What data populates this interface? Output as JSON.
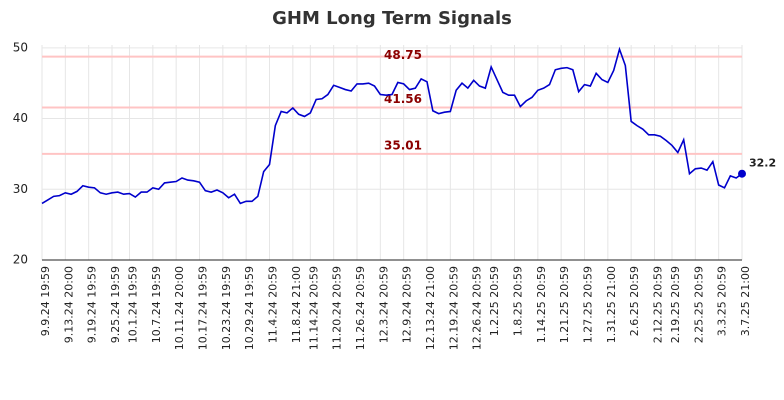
{
  "chart_data": {
    "type": "line",
    "title": "GHM Long Term Signals",
    "categories": [
      "9.9.24 19:59",
      null,
      null,
      null,
      "9.13.24 20:00",
      null,
      null,
      null,
      "9.19.24 19:59",
      null,
      null,
      null,
      "9.25.24 19:59",
      null,
      null,
      "10.1.24 19:59",
      null,
      null,
      null,
      "10.7.24 19:59",
      null,
      null,
      null,
      "10.11.24 20:00",
      null,
      null,
      null,
      "10.17.24 19:59",
      null,
      null,
      null,
      "10.23.24 19:59",
      null,
      null,
      null,
      "10.29.24 19:59",
      null,
      null,
      null,
      "11.4.24 20:59",
      null,
      null,
      null,
      "11.8.24 21:00",
      null,
      null,
      "11.14.24 20:59",
      null,
      null,
      null,
      "11.20.24 20:59",
      null,
      null,
      null,
      "11.26.24 20:59",
      null,
      null,
      null,
      "12.3.24 20:59",
      null,
      null,
      null,
      "12.9.24 20:59",
      null,
      null,
      null,
      "12.13.24 21:00",
      null,
      null,
      null,
      "12.19.24 20:59",
      null,
      null,
      null,
      "12.26.24 20:59",
      null,
      null,
      "1.2.25 20:59",
      null,
      null,
      null,
      "1.8.25 20:59",
      null,
      null,
      null,
      "1.14.25 20:59",
      null,
      null,
      null,
      "1.21.25 20:59",
      null,
      null,
      null,
      "1.27.25 20:59",
      null,
      null,
      null,
      "1.31.25 21:00",
      null,
      null,
      null,
      "2.6.25 20:59",
      null,
      null,
      null,
      "2.12.25 20:59",
      null,
      null,
      "2.19.25 20:59",
      null,
      null,
      null,
      "2.25.25 20:59",
      null,
      null,
      null,
      "3.3.25 20:59",
      null,
      null,
      null,
      "3.7.25 21:00"
    ],
    "values": [
      28.0,
      28.5,
      29.0,
      29.1,
      29.5,
      29.3,
      29.7,
      30.5,
      30.3,
      30.2,
      29.5,
      29.3,
      29.5,
      29.6,
      29.3,
      29.4,
      28.9,
      29.6,
      29.6,
      30.2,
      30.0,
      30.9,
      31.0,
      31.1,
      31.6,
      31.3,
      31.2,
      31.0,
      29.8,
      29.6,
      29.9,
      29.5,
      28.8,
      29.3,
      28.0,
      28.3,
      28.3,
      29.0,
      32.5,
      33.5,
      39.0,
      41.0,
      40.8,
      41.5,
      40.6,
      40.3,
      40.8,
      42.7,
      42.8,
      43.4,
      44.7,
      44.4,
      44.1,
      43.9,
      44.9,
      44.9,
      45.0,
      44.6,
      43.4,
      43.3,
      43.4,
      45.1,
      44.9,
      44.1,
      44.3,
      45.6,
      45.2,
      41.1,
      40.7,
      40.9,
      41.0,
      44.0,
      45.0,
      44.3,
      45.4,
      44.6,
      44.3,
      47.3,
      45.5,
      43.7,
      43.3,
      43.3,
      41.7,
      42.5,
      43.0,
      44.0,
      44.3,
      44.8,
      46.9,
      47.1,
      47.2,
      46.9,
      43.8,
      44.8,
      44.6,
      46.4,
      45.5,
      45.1,
      46.8,
      49.8,
      47.5,
      39.6,
      39.0,
      38.5,
      37.7,
      37.7,
      37.5,
      36.9,
      36.2,
      35.2,
      37.0,
      32.2,
      32.9,
      33.0,
      32.7,
      33.9,
      30.6,
      30.2,
      31.9,
      31.6,
      32.2
    ],
    "color": "#0000cc",
    "ylim": [
      20,
      50.4
    ],
    "yticks": [
      20,
      30,
      40,
      50
    ],
    "grid": true,
    "hlines": [
      48.75,
      41.56,
      35.01
    ],
    "hline_color": "#ffc4c4"
  }
}
